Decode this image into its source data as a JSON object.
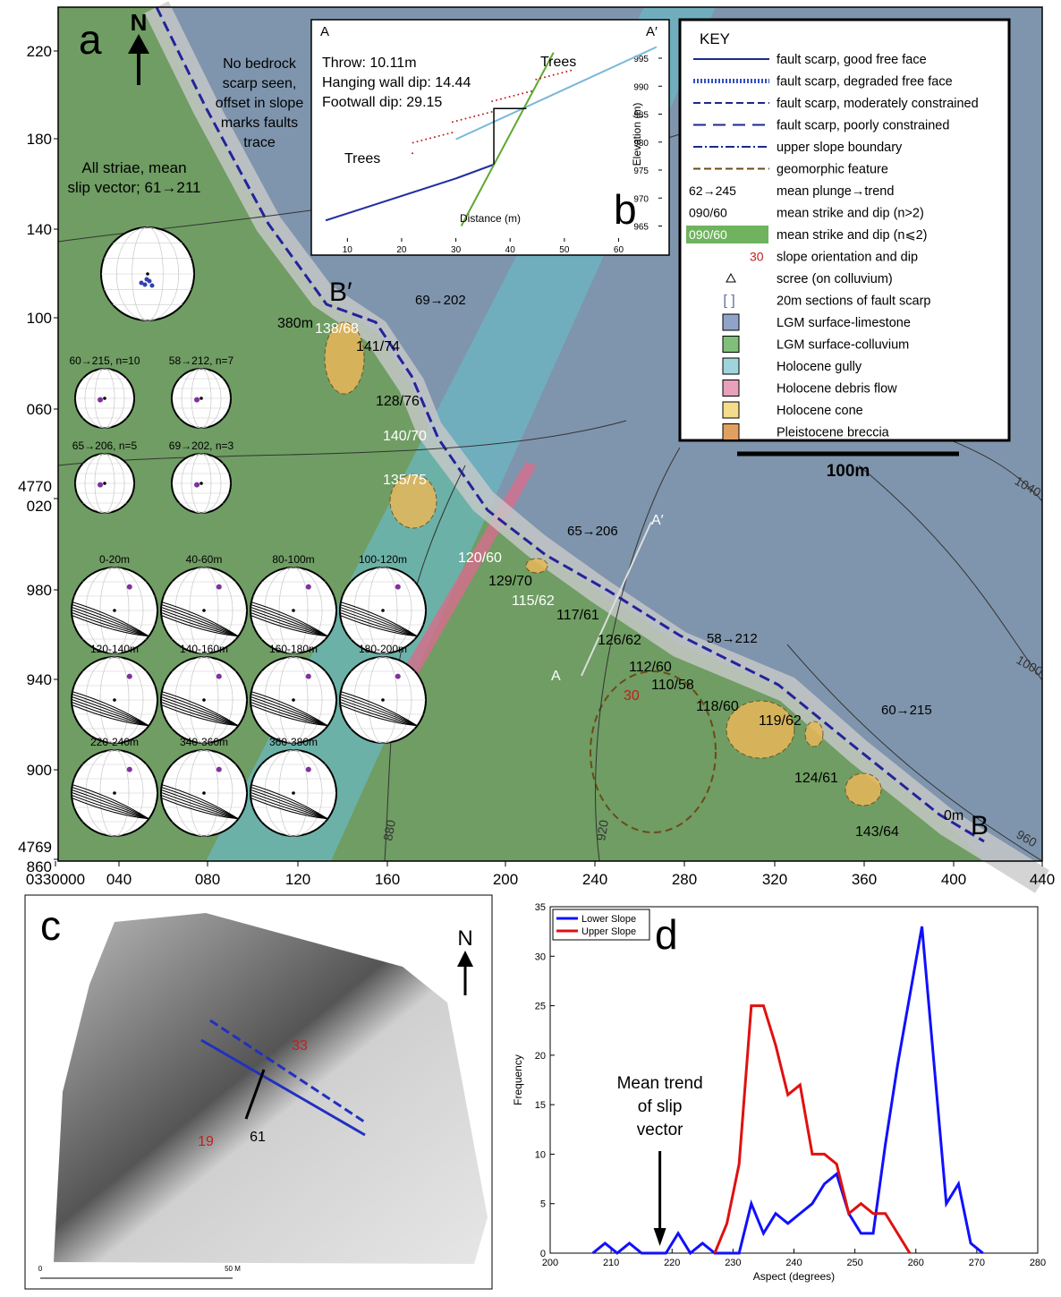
{
  "map": {
    "panel_label": "a",
    "north": "N",
    "yticks": [
      "220",
      "180",
      "140",
      "100",
      "060",
      [
        "4770",
        "020"
      ],
      "980",
      "940",
      "900",
      [
        "4769",
        "860"
      ]
    ],
    "xticks": [
      "0330000",
      "040",
      "080",
      "120",
      "160",
      "200",
      "240",
      "280",
      "320",
      "360",
      "400",
      "440"
    ],
    "note": [
      "No bedrock",
      "scarp seen,",
      "offset in slope",
      "marks faults",
      "trace"
    ],
    "striae_title": [
      "All striae, mean",
      "slip vector; 61→211"
    ],
    "stereonets": [
      "60→215, n=10",
      "58→212, n=7",
      "65→206, n=5",
      "69→202, n=3",
      "0-20m",
      "40-60m",
      "80-100m",
      "100-120m",
      "120-140m",
      "140-160m",
      "160-180m",
      "180-200m",
      "220-240m",
      "340-360m",
      "360-380m"
    ],
    "orientations": [
      "138/68",
      "141/74",
      "128/76",
      "140/70",
      "135/75",
      "120/60",
      "129/70",
      "115/62",
      "117/61",
      "126/62",
      "112/60",
      "110/58",
      "118/60",
      "119/62",
      "124/61",
      "143/64"
    ],
    "trends": [
      "69→202",
      "65→206",
      "58→212",
      "60→215"
    ],
    "points": [
      "380m",
      "0m",
      "B′",
      "B",
      "A",
      "A′",
      "30"
    ],
    "contours": [
      "880",
      "920",
      "960",
      "1000",
      "1040"
    ],
    "scale": "100m"
  },
  "profile": {
    "panel_label": "b",
    "start": "A",
    "end": "A′",
    "stats": [
      "Throw: 10.11m",
      "Hanging wall dip: 14.44",
      "Footwall dip: 29.15"
    ],
    "trees": [
      "Trees",
      "Trees"
    ],
    "xlabel": "Distance (m)",
    "ylabel": "Elevation (m)",
    "xlim": [
      5,
      68
    ],
    "xticks": [
      10,
      20,
      30,
      40,
      50,
      60
    ],
    "ylim": [
      963,
      999
    ],
    "yticks": [
      965,
      970,
      975,
      980,
      985,
      990,
      995
    ]
  },
  "key": {
    "title": "KEY",
    "items": [
      {
        "label": "fault scarp, good free face"
      },
      {
        "label": "fault scarp, degraded free face"
      },
      {
        "label": "fault scarp, moderately constrained"
      },
      {
        "label": "fault scarp, poorly constrained"
      },
      {
        "label": "upper slope boundary"
      },
      {
        "label": "geomorphic feature"
      },
      {
        "symbol_text": "62→245",
        "label": "mean plunge→trend"
      },
      {
        "symbol_text": "090/60",
        "label": "mean strike and dip (n>2)"
      },
      {
        "symbol_text": "090/60",
        "label": "mean strike and dip (n⩽2)"
      },
      {
        "symbol_text": "30",
        "label": "slope orientation and dip"
      },
      {
        "label": "scree (on colluvium)"
      },
      {
        "label": "20m sections of fault scarp"
      },
      {
        "label": "LGM surface-limestone"
      },
      {
        "label": "LGM surface-colluvium"
      },
      {
        "label": "Holocene gully"
      },
      {
        "label": "Holocene debris flow"
      },
      {
        "label": "Holocene cone"
      },
      {
        "label": "Pleistocene breccia"
      }
    ]
  },
  "hillshade": {
    "panel_label": "c",
    "north": "N",
    "dips": [
      "33",
      "19"
    ],
    "plunge": "61",
    "scale": [
      "0",
      "50 M"
    ]
  },
  "chart_data": {
    "type": "line",
    "panel_label": "d",
    "xlabel": "Aspect (degrees)",
    "ylabel": "Frequency",
    "annotation": [
      "Mean trend",
      "of slip",
      "vector"
    ],
    "x": [
      207,
      209,
      211,
      213,
      215,
      217,
      219,
      221,
      223,
      225,
      227,
      229,
      231,
      233,
      235,
      237,
      239,
      241,
      243,
      245,
      247,
      249,
      251,
      253,
      255,
      257,
      259,
      261,
      263,
      265,
      267,
      269,
      271
    ],
    "series": [
      {
        "name": "Lower Slope",
        "color": "#1010ff",
        "values": [
          0,
          1,
          0,
          1,
          0,
          0,
          0,
          2,
          0,
          1,
          0,
          0,
          0,
          5,
          2,
          4,
          3,
          4,
          5,
          7,
          8,
          4,
          2,
          2,
          11,
          19,
          26,
          33,
          19,
          5,
          7,
          1,
          0
        ]
      },
      {
        "name": "Upper Slope",
        "color": "#e01010",
        "values": [
          null,
          null,
          null,
          null,
          null,
          null,
          null,
          null,
          null,
          null,
          0,
          3,
          9,
          25,
          25,
          21,
          16,
          17,
          10,
          10,
          9,
          4,
          5,
          4,
          4,
          2,
          0,
          null,
          null,
          null,
          null,
          null,
          null
        ]
      }
    ],
    "xlim": [
      200,
      280
    ],
    "xticks": [
      200,
      210,
      220,
      230,
      240,
      250,
      260,
      270,
      280
    ],
    "ylim": [
      0,
      35
    ],
    "yticks": [
      0,
      5,
      10,
      15,
      20,
      25,
      30,
      35
    ],
    "annotation_x": 218,
    "legend": "upper-left"
  }
}
